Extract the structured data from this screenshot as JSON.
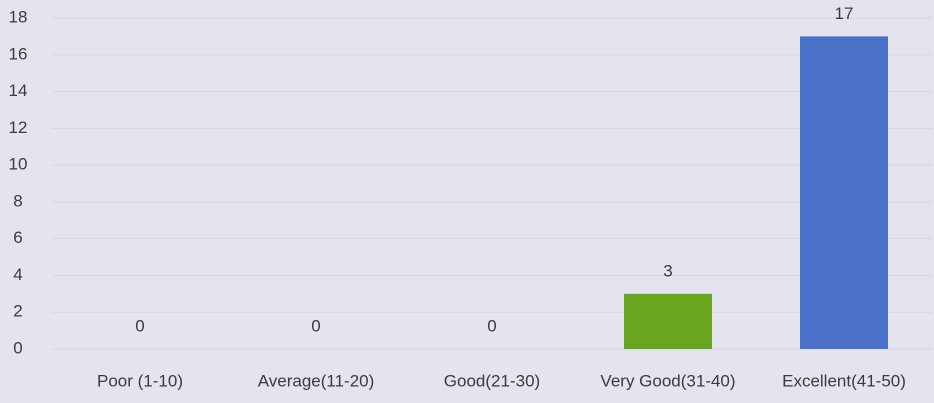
{
  "chart_data": {
    "type": "bar",
    "categories": [
      "Poor (1-10)",
      "Average(11-20)",
      "Good(21-30)",
      "Very Good(31-40)",
      "Excellent(41-50)"
    ],
    "values": [
      0,
      0,
      0,
      3,
      17
    ],
    "colors": [
      null,
      null,
      null,
      "#6aa51f",
      "#4a72c8"
    ],
    "ylim": [
      0,
      18
    ],
    "yticks": [
      0,
      2,
      4,
      6,
      8,
      10,
      12,
      14,
      16,
      18
    ],
    "grid": true
  }
}
